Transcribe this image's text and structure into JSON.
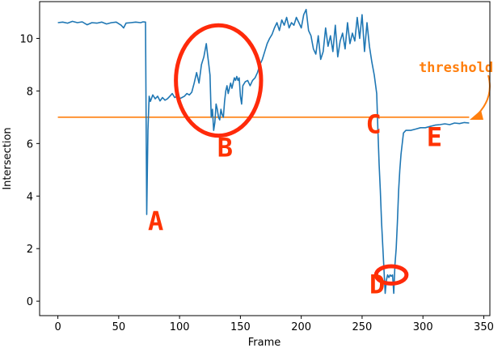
{
  "chart_data": {
    "type": "line",
    "xlabel": "Frame",
    "ylabel": "Intersection",
    "xlim": [
      -15,
      355
    ],
    "ylim": [
      -0.55,
      11.4
    ],
    "x_ticks": [
      0,
      50,
      100,
      150,
      200,
      250,
      300,
      350
    ],
    "y_ticks": [
      0,
      2,
      4,
      6,
      8,
      10
    ],
    "grid": false,
    "legend": "none",
    "series_color": "#1f77b4",
    "threshold": {
      "value": 7.0,
      "x_range": [
        0,
        338
      ],
      "color": "#ff7f0e",
      "label": "threshold"
    },
    "series": [
      {
        "values": [
          [
            0,
            10.6
          ],
          [
            4,
            10.62
          ],
          [
            8,
            10.58
          ],
          [
            12,
            10.65
          ],
          [
            16,
            10.6
          ],
          [
            20,
            10.63
          ],
          [
            24,
            10.52
          ],
          [
            28,
            10.6
          ],
          [
            32,
            10.58
          ],
          [
            36,
            10.62
          ],
          [
            40,
            10.55
          ],
          [
            44,
            10.6
          ],
          [
            48,
            10.62
          ],
          [
            52,
            10.5
          ],
          [
            54,
            10.4
          ],
          [
            56,
            10.58
          ],
          [
            60,
            10.6
          ],
          [
            64,
            10.62
          ],
          [
            68,
            10.6
          ],
          [
            70,
            10.63
          ],
          [
            72,
            10.62
          ],
          [
            73,
            3.3
          ],
          [
            74,
            6.5
          ],
          [
            75,
            7.8
          ],
          [
            76,
            7.6
          ],
          [
            78,
            7.85
          ],
          [
            80,
            7.7
          ],
          [
            82,
            7.8
          ],
          [
            84,
            7.62
          ],
          [
            86,
            7.75
          ],
          [
            88,
            7.65
          ],
          [
            90,
            7.7
          ],
          [
            92,
            7.8
          ],
          [
            94,
            7.9
          ],
          [
            96,
            7.75
          ],
          [
            98,
            7.8
          ],
          [
            100,
            7.7
          ],
          [
            102,
            7.75
          ],
          [
            104,
            7.8
          ],
          [
            106,
            7.9
          ],
          [
            108,
            7.85
          ],
          [
            110,
            7.95
          ],
          [
            112,
            8.3
          ],
          [
            114,
            8.7
          ],
          [
            116,
            8.3
          ],
          [
            118,
            9.0
          ],
          [
            120,
            9.3
          ],
          [
            122,
            9.8
          ],
          [
            123,
            9.4
          ],
          [
            124,
            9.0
          ],
          [
            125,
            8.6
          ],
          [
            126,
            7.0
          ],
          [
            127,
            7.3
          ],
          [
            128,
            6.5
          ],
          [
            129,
            6.8
          ],
          [
            130,
            7.5
          ],
          [
            131,
            7.3
          ],
          [
            132,
            7.0
          ],
          [
            133,
            6.9
          ],
          [
            134,
            7.3
          ],
          [
            135,
            7.1
          ],
          [
            136,
            7.0
          ],
          [
            137,
            7.6
          ],
          [
            138,
            8.0
          ],
          [
            139,
            8.2
          ],
          [
            140,
            7.9
          ],
          [
            142,
            8.3
          ],
          [
            143,
            8.1
          ],
          [
            145,
            8.5
          ],
          [
            146,
            8.4
          ],
          [
            147,
            8.55
          ],
          [
            148,
            8.4
          ],
          [
            149,
            8.5
          ],
          [
            150,
            7.8
          ],
          [
            151,
            7.5
          ],
          [
            152,
            8.2
          ],
          [
            154,
            8.35
          ],
          [
            156,
            8.4
          ],
          [
            158,
            8.2
          ],
          [
            160,
            8.4
          ],
          [
            162,
            8.5
          ],
          [
            164,
            8.7
          ],
          [
            166,
            9.0
          ],
          [
            168,
            9.2
          ],
          [
            170,
            9.5
          ],
          [
            172,
            9.8
          ],
          [
            174,
            10.0
          ],
          [
            176,
            10.15
          ],
          [
            178,
            10.4
          ],
          [
            180,
            10.6
          ],
          [
            182,
            10.3
          ],
          [
            184,
            10.7
          ],
          [
            186,
            10.5
          ],
          [
            188,
            10.8
          ],
          [
            190,
            10.4
          ],
          [
            192,
            10.6
          ],
          [
            194,
            10.5
          ],
          [
            196,
            10.8
          ],
          [
            198,
            10.6
          ],
          [
            200,
            10.4
          ],
          [
            202,
            10.9
          ],
          [
            204,
            11.1
          ],
          [
            206,
            10.3
          ],
          [
            208,
            10.1
          ],
          [
            210,
            9.6
          ],
          [
            212,
            9.4
          ],
          [
            214,
            10.1
          ],
          [
            216,
            9.2
          ],
          [
            218,
            9.5
          ],
          [
            220,
            10.4
          ],
          [
            222,
            9.7
          ],
          [
            224,
            10.1
          ],
          [
            226,
            9.5
          ],
          [
            228,
            10.5
          ],
          [
            230,
            9.3
          ],
          [
            232,
            9.9
          ],
          [
            234,
            10.2
          ],
          [
            236,
            9.6
          ],
          [
            238,
            10.6
          ],
          [
            240,
            9.8
          ],
          [
            242,
            10.2
          ],
          [
            244,
            9.9
          ],
          [
            246,
            10.8
          ],
          [
            248,
            10.0
          ],
          [
            250,
            10.9
          ],
          [
            252,
            9.5
          ],
          [
            254,
            10.6
          ],
          [
            256,
            9.7
          ],
          [
            258,
            9.1
          ],
          [
            260,
            8.6
          ],
          [
            262,
            7.9
          ],
          [
            263,
            6.5
          ],
          [
            264,
            5.2
          ],
          [
            265,
            4.2
          ],
          [
            266,
            3.0
          ],
          [
            267,
            2.1
          ],
          [
            268,
            1.2
          ],
          [
            269,
            0.3
          ],
          [
            270,
            0.8
          ],
          [
            271,
            1.0
          ],
          [
            272,
            0.9
          ],
          [
            273,
            1.0
          ],
          [
            274,
            0.95
          ],
          [
            275,
            1.0
          ],
          [
            276,
            0.3
          ],
          [
            277,
            1.4
          ],
          [
            278,
            2.0
          ],
          [
            279,
            3.0
          ],
          [
            280,
            4.2
          ],
          [
            281,
            5.0
          ],
          [
            282,
            5.6
          ],
          [
            283,
            6.0
          ],
          [
            284,
            6.4
          ],
          [
            286,
            6.5
          ],
          [
            290,
            6.5
          ],
          [
            294,
            6.55
          ],
          [
            298,
            6.6
          ],
          [
            302,
            6.6
          ],
          [
            306,
            6.65
          ],
          [
            310,
            6.7
          ],
          [
            314,
            6.72
          ],
          [
            318,
            6.75
          ],
          [
            322,
            6.72
          ],
          [
            326,
            6.78
          ],
          [
            330,
            6.76
          ],
          [
            334,
            6.8
          ],
          [
            338,
            6.78
          ]
        ]
      }
    ],
    "annotations": [
      {
        "label": "A",
        "x": 74,
        "y": 2.7
      },
      {
        "label": "B",
        "x": 131,
        "y": 5.5
      },
      {
        "label": "C",
        "x": 253,
        "y": 6.4
      },
      {
        "label": "D",
        "x": 256,
        "y": 0.3
      },
      {
        "label": "E",
        "x": 303,
        "y": 5.9
      }
    ],
    "ellipses": [
      {
        "cx": 132,
        "cy": 8.4,
        "rx": 35,
        "ry": 2.1,
        "color": "#ff2a0a"
      },
      {
        "cx": 274,
        "cy": 1.0,
        "rx": 12.5,
        "ry": 0.33,
        "color": "#ff2a0a"
      }
    ]
  }
}
